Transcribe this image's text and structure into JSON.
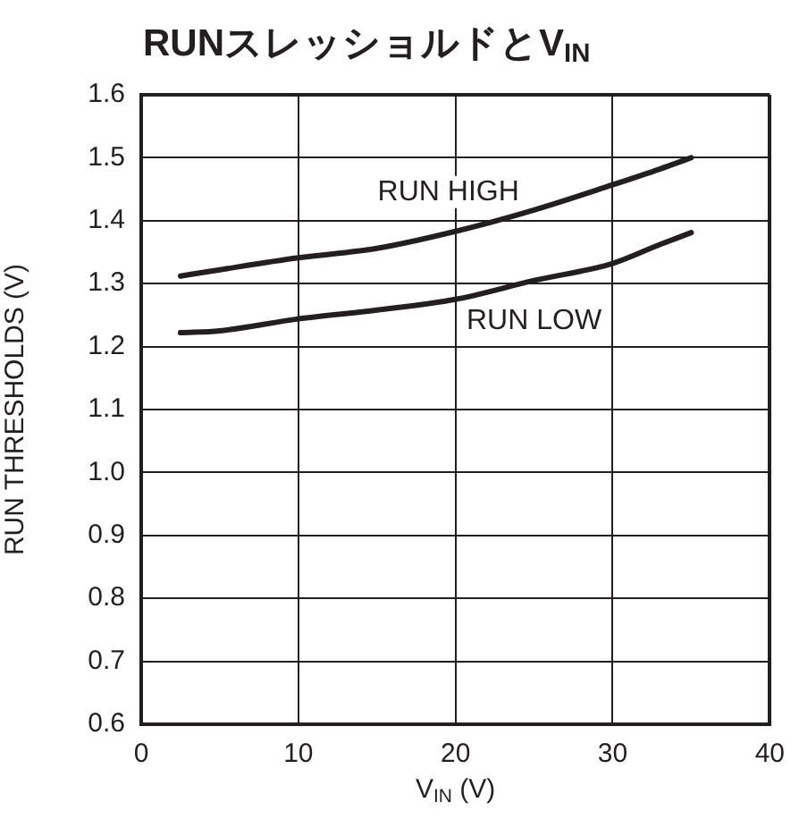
{
  "chart_data": {
    "type": "line",
    "title": "RUNスレッショルドとV$_{IN}$",
    "xlabel": "V$_{IN}$ (V)",
    "ylabel": "RUN THRESHOLDS (V)",
    "series": [
      {
        "name": "RUN HIGH",
        "color": "#231f20",
        "x": [
          2.5,
          5,
          10,
          15,
          20,
          25,
          30,
          33,
          35
        ],
        "values": [
          1.312,
          1.322,
          1.341,
          1.356,
          1.383,
          1.417,
          1.457,
          1.482,
          1.5
        ]
      },
      {
        "name": "RUN LOW",
        "color": "#231f20",
        "x": [
          2.5,
          5,
          10,
          15,
          20,
          25,
          30,
          33,
          35
        ],
        "values": [
          1.222,
          1.225,
          1.244,
          1.258,
          1.275,
          1.305,
          1.332,
          1.362,
          1.381
        ]
      }
    ],
    "xlim": [
      0,
      40
    ],
    "xticks": [
      0,
      10,
      20,
      30,
      40
    ],
    "ylim": [
      0.6,
      1.6
    ],
    "yticks": [
      0.6,
      0.7,
      0.8,
      0.9,
      {
        "value": 1.0,
        "label": "1.0"
      },
      1.1,
      1.2,
      1.3,
      1.4,
      1.5,
      1.6
    ],
    "grid": true,
    "legend": false,
    "marker": "none",
    "line_style": "solid"
  }
}
